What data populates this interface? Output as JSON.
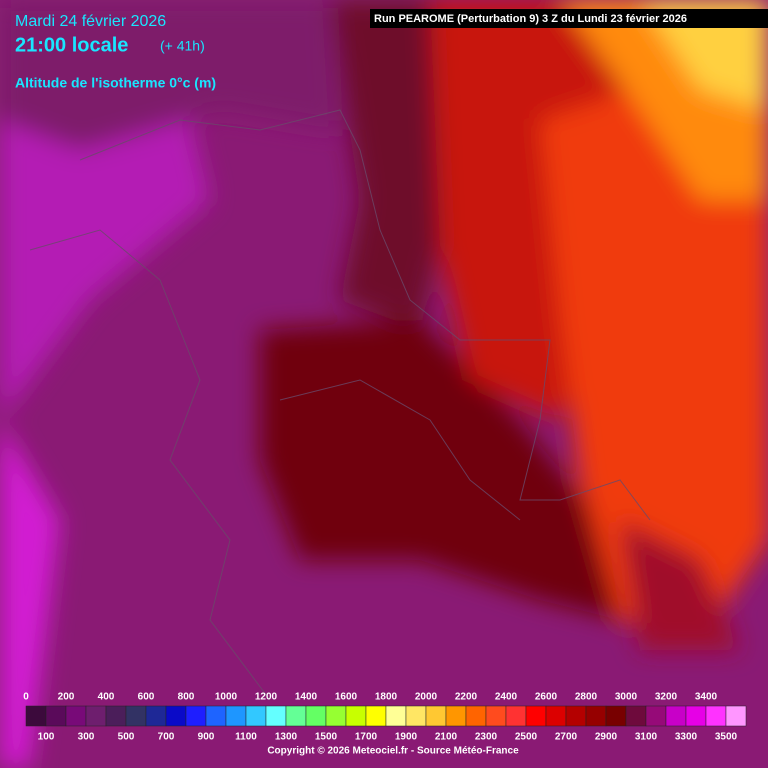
{
  "header": {
    "date": "Mardi 24 février 2026",
    "time": "21:00 locale",
    "lead": "(+ 41h)",
    "variable": "Altitude de l'isotherme 0°c (m)",
    "run": "Run PEAROME (Perturbation 9) 3 Z du Lundi 23 février 2026"
  },
  "legend": {
    "top_labels": [
      0,
      200,
      400,
      600,
      800,
      1000,
      1200,
      1400,
      1600,
      1800,
      2000,
      2200,
      2400,
      2600,
      2800,
      3000,
      3200,
      3400
    ],
    "bottom_labels": [
      100,
      300,
      500,
      700,
      900,
      1100,
      1300,
      1500,
      1700,
      1900,
      2100,
      2300,
      2500,
      2700,
      2900,
      3100,
      3300,
      3500
    ],
    "colors": [
      "#3c0a3c",
      "#5a0a5a",
      "#780a78",
      "#6e1e6e",
      "#4b1e5a",
      "#323264",
      "#1e2896",
      "#0a0ac8",
      "#1e1eff",
      "#1e64ff",
      "#1e96ff",
      "#32c8ff",
      "#64ffff",
      "#64ff96",
      "#64ff64",
      "#96ff32",
      "#c8ff00",
      "#ffff00",
      "#ffff96",
      "#ffe664",
      "#ffc832",
      "#ff9600",
      "#ff6400",
      "#ff4b1e",
      "#ff3232",
      "#ff0000",
      "#dc0000",
      "#b40000",
      "#960000",
      "#780000",
      "#6e0a3c",
      "#960a78",
      "#c800c8",
      "#e600e6",
      "#ff32ff",
      "#ff96ff"
    ]
  },
  "footer": {
    "copyright": "Copyright © 2026 Meteociel.fr - Source Météo-France"
  }
}
